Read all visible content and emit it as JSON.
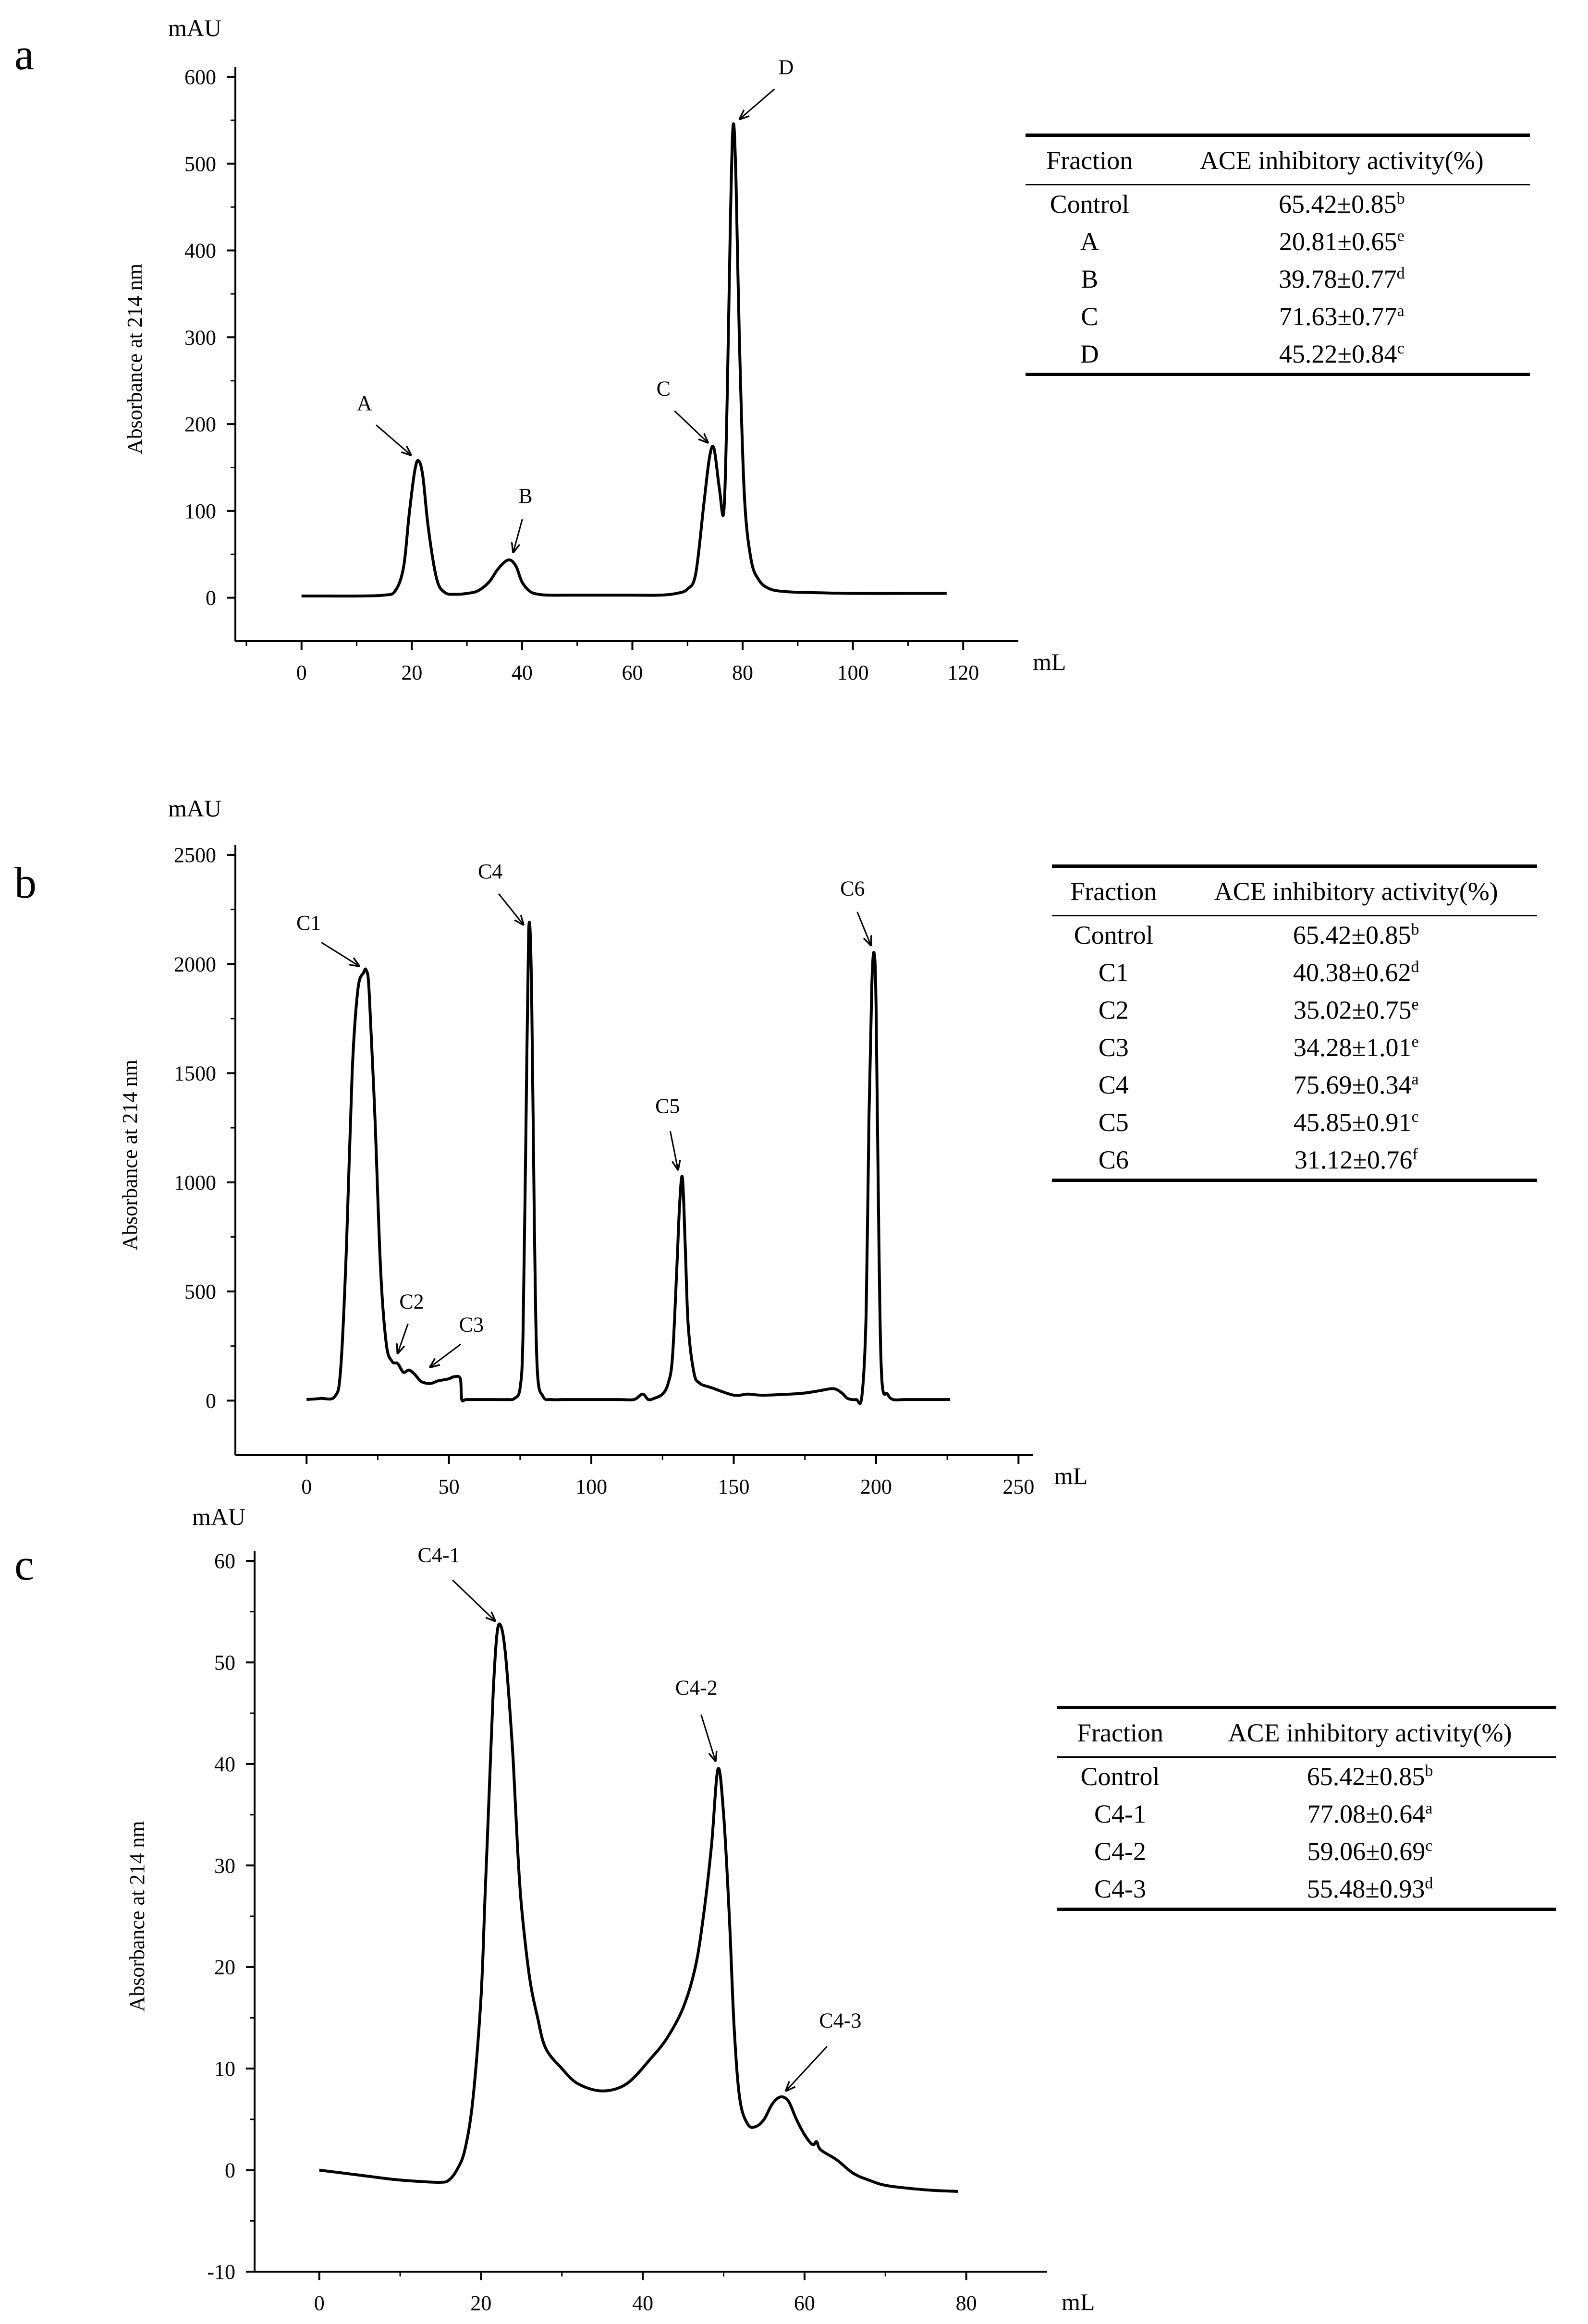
{
  "chart_data": [
    {
      "id": "a",
      "type": "line",
      "panel_label": "a",
      "title": "",
      "xlabel": "mL",
      "ylabel": "Absorbance at 214 nm",
      "y_unit": "mAU",
      "xlim": [
        -12,
        130
      ],
      "ylim": [
        -50,
        600
      ],
      "xticks": [
        0,
        20,
        40,
        60,
        80,
        100,
        120
      ],
      "yticks": [
        0,
        100,
        200,
        300,
        400,
        500,
        600
      ],
      "grid": false,
      "series": [
        {
          "x": [
            0,
            5,
            10,
            15,
            17,
            18.5,
            19.5,
            20.5,
            21.2,
            22,
            23,
            24.5,
            26,
            28,
            30,
            32,
            34,
            35.5,
            37,
            38,
            39,
            40,
            41.5,
            43,
            45,
            50,
            55,
            60,
            65,
            68,
            70,
            71.5,
            73,
            74,
            74.8,
            75.8,
            76.6,
            77.2,
            77.8,
            78.3,
            78.8,
            79.4,
            80.3,
            81.5,
            83,
            85,
            88,
            92,
            100,
            110,
            117
          ],
          "y": [
            2,
            2,
            2,
            3,
            8,
            35,
            95,
            145,
            158,
            140,
            80,
            22,
            6,
            4,
            5,
            8,
            18,
            32,
            42,
            43,
            35,
            18,
            7,
            4,
            3,
            3,
            3,
            3,
            3,
            5,
            10,
            28,
            110,
            162,
            172,
            125,
            100,
            230,
            440,
            545,
            480,
            300,
            120,
            45,
            20,
            10,
            7,
            6,
            5,
            5,
            5
          ]
        }
      ],
      "annotations": [
        {
          "text": "A",
          "x": 21,
          "y": 158
        },
        {
          "text": "B",
          "x": 38,
          "y": 43
        },
        {
          "text": "C",
          "x": 74.8,
          "y": 172
        },
        {
          "text": "D",
          "x": 78.3,
          "y": 545
        }
      ],
      "table": {
        "headers": [
          "Fraction",
          "ACE inhibitory activity(%)"
        ],
        "rows": [
          {
            "fraction": "Control",
            "value": "65.42±0.85",
            "sup": "b"
          },
          {
            "fraction": "A",
            "value": "20.81±0.65",
            "sup": "e"
          },
          {
            "fraction": "B",
            "value": "39.78±0.77",
            "sup": "d"
          },
          {
            "fraction": "C",
            "value": "71.63±0.77",
            "sup": "a"
          },
          {
            "fraction": "D",
            "value": "45.22±0.84",
            "sup": "c"
          }
        ]
      }
    },
    {
      "id": "b",
      "type": "line",
      "panel_label": "b",
      "title": "",
      "xlabel": "mL",
      "ylabel": "Absorbance at 214 nm",
      "y_unit": "mAU",
      "xlim": [
        -25,
        255
      ],
      "ylim": [
        -250,
        2500
      ],
      "xticks": [
        0,
        50,
        100,
        150,
        200,
        250
      ],
      "yticks": [
        0,
        500,
        1000,
        1500,
        2000,
        2500
      ],
      "grid": false,
      "series": [
        {
          "x": [
            0,
            5,
            10,
            12,
            14,
            16,
            18,
            20,
            21,
            22,
            24,
            26,
            28,
            30,
            32,
            34,
            36,
            38,
            40,
            42,
            44,
            46,
            48,
            50,
            52,
            54,
            54.5,
            56,
            60,
            65,
            70,
            73,
            75,
            76,
            77,
            78,
            79,
            80,
            81,
            83,
            86,
            90,
            95,
            100,
            110,
            115,
            118,
            120,
            122,
            125,
            127,
            128.5,
            130,
            131,
            132,
            133,
            134,
            136,
            138,
            142,
            150,
            155,
            160,
            170,
            175,
            180,
            185,
            188,
            190,
            193,
            195,
            196.5,
            197.5,
            198.5,
            199.3,
            200,
            201,
            202,
            204,
            206,
            210,
            215,
            226
          ],
          "y": [
            5,
            10,
            20,
            150,
            700,
            1500,
            1880,
            1960,
            1970,
            1870,
            1300,
            600,
            260,
            180,
            170,
            130,
            140,
            120,
            90,
            80,
            80,
            90,
            95,
            100,
            110,
            100,
            5,
            5,
            5,
            5,
            5,
            10,
            60,
            300,
            1200,
            2150,
            1900,
            800,
            150,
            20,
            5,
            5,
            5,
            5,
            5,
            5,
            30,
            5,
            10,
            30,
            80,
            200,
            600,
            900,
            1020,
            700,
            350,
            130,
            80,
            60,
            25,
            30,
            25,
            30,
            35,
            45,
            55,
            35,
            10,
            5,
            20,
            400,
            1300,
            1900,
            2050,
            1800,
            700,
            100,
            30,
            5,
            5,
            5,
            5
          ]
        }
      ],
      "annotations": [
        {
          "text": "C1",
          "x": 21,
          "y": 1970
        },
        {
          "text": "C2",
          "x": 31,
          "y": 180
        },
        {
          "text": "C3",
          "x": 41,
          "y": 130
        },
        {
          "text": "C4",
          "x": 78,
          "y": 2150
        },
        {
          "text": "C5",
          "x": 131,
          "y": 1020
        },
        {
          "text": "C6",
          "x": 199.3,
          "y": 2050
        }
      ],
      "table": {
        "headers": [
          "Fraction",
          "ACE inhibitory activity(%)"
        ],
        "rows": [
          {
            "fraction": "Control",
            "value": "65.42±0.85",
            "sup": "b"
          },
          {
            "fraction": "C1",
            "value": "40.38±0.62",
            "sup": "d"
          },
          {
            "fraction": "C2",
            "value": "35.02±0.75",
            "sup": "e"
          },
          {
            "fraction": "C3",
            "value": "34.28±1.01",
            "sup": "e"
          },
          {
            "fraction": "C4",
            "value": "75.69±0.34",
            "sup": "a"
          },
          {
            "fraction": "C5",
            "value": "45.85±0.91",
            "sup": "c"
          },
          {
            "fraction": "C6",
            "value": "31.12±0.76",
            "sup": "f"
          }
        ]
      }
    },
    {
      "id": "c",
      "type": "line",
      "panel_label": "c",
      "title": "",
      "xlabel": "mL",
      "ylabel": "Absorbance at 214 nm",
      "y_unit": "mAU",
      "xlim": [
        -8,
        90
      ],
      "ylim": [
        -10,
        60
      ],
      "xticks": [
        0,
        20,
        40,
        60,
        80
      ],
      "yticks": [
        -10,
        0,
        10,
        20,
        30,
        40,
        50,
        60
      ],
      "grid": false,
      "series": [
        {
          "x": [
            0,
            3,
            6,
            9,
            12,
            15,
            16,
            17,
            18,
            19,
            20,
            20.5,
            21,
            21.5,
            22,
            22.5,
            23,
            23.5,
            24,
            24.5,
            25,
            26,
            27,
            28,
            30,
            32,
            35,
            38,
            41,
            43,
            45,
            46.5,
            47.5,
            48.5,
            49.3,
            50,
            50.7,
            51.3,
            52,
            53,
            54,
            55,
            56,
            57,
            58,
            59,
            60,
            61,
            61.5,
            62,
            64,
            66,
            68,
            70,
            73,
            76,
            79
          ],
          "y": [
            0,
            -0.3,
            -0.6,
            -0.9,
            -1.1,
            -1.2,
            -1.0,
            0,
            2,
            7,
            17,
            27,
            37,
            47,
            53,
            53.5,
            51,
            46,
            40,
            32,
            26,
            19,
            15,
            12,
            10,
            8.5,
            7.8,
            8.5,
            11,
            13,
            16,
            20,
            25,
            32,
            39.5,
            35,
            25,
            14,
            7,
            4.5,
            4.3,
            5,
            6.5,
            7.2,
            6.8,
            5,
            3.5,
            2.5,
            2.8,
            2,
            1,
            -0.3,
            -1,
            -1.5,
            -1.8,
            -2.0,
            -2.1
          ]
        }
      ],
      "annotations": [
        {
          "text": "C4-1",
          "x": 22.5,
          "y": 53.5
        },
        {
          "text": "C4-2",
          "x": 49.3,
          "y": 39.5
        },
        {
          "text": "C4-3",
          "x": 57,
          "y": 7.2
        }
      ],
      "table": {
        "headers": [
          "Fraction",
          "ACE inhibitory activity(%)"
        ],
        "rows": [
          {
            "fraction": "Control",
            "value": "65.42±0.85",
            "sup": "b"
          },
          {
            "fraction": "C4-1",
            "value": "77.08±0.64",
            "sup": "a"
          },
          {
            "fraction": "C4-2",
            "value": "59.06±0.69",
            "sup": "c"
          },
          {
            "fraction": "C4-3",
            "value": "55.48±0.93",
            "sup": "d"
          }
        ]
      }
    }
  ]
}
